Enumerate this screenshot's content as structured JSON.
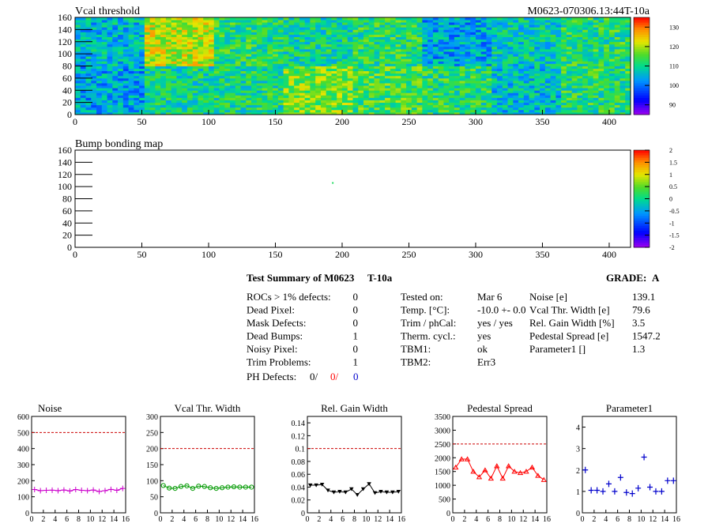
{
  "map1": {
    "title": "Vcal threshold",
    "id": "M0623-070306.13:44T-10a",
    "xticks": [
      "0",
      "50",
      "100",
      "150",
      "200",
      "250",
      "300",
      "350",
      "400"
    ],
    "yticks": [
      "0",
      "20",
      "40",
      "60",
      "80",
      "100",
      "120",
      "140",
      "160"
    ],
    "palette_labels": [
      "90",
      "100",
      "110",
      "120",
      "130"
    ]
  },
  "map2": {
    "title": "Bump bonding map",
    "xticks": [
      "0",
      "50",
      "100",
      "150",
      "200",
      "250",
      "300",
      "350",
      "400"
    ],
    "yticks": [
      "0",
      "20",
      "40",
      "60",
      "80",
      "100",
      "120",
      "140",
      "160"
    ],
    "palette_labels": [
      "-2",
      "-1.5",
      "-1",
      "-0.5",
      "0",
      "0.5",
      "1",
      "1.5",
      "2"
    ]
  },
  "summary": {
    "title": "Test Summary of M0623",
    "temp": "T-10a",
    "grade_label": "GRADE:",
    "grade": "A",
    "defects": [
      {
        "label": "ROCs > 1% defects:",
        "value": "0"
      },
      {
        "label": "Dead Pixel:",
        "value": "0"
      },
      {
        "label": "Mask Defects:",
        "value": "0"
      },
      {
        "label": "Dead Bumps:",
        "value": "1"
      },
      {
        "label": "Noisy Pixel:",
        "value": "0"
      },
      {
        "label": "Trim Problems:",
        "value": "1"
      }
    ],
    "ph_label": "PH Defects:",
    "ph_values": [
      "0/",
      "0/",
      "0"
    ],
    "ph_colors": [
      "#000000",
      "#ff0000",
      "#0000cc"
    ],
    "info": [
      {
        "label": "Tested on:",
        "value": "Mar 6"
      },
      {
        "label": "Temp. [°C]:",
        "value": "-10.0 +- 0.0"
      },
      {
        "label": "Trim / phCal:",
        "value": "yes / yes"
      },
      {
        "label": "Therm. cycl.:",
        "value": "yes"
      },
      {
        "label": "TBM1:",
        "value": "ok"
      },
      {
        "label": "TBM2:",
        "value": "Err3"
      }
    ],
    "params": [
      {
        "label": "Noise [e]",
        "value": "139.1"
      },
      {
        "label": "Vcal Thr. Width [e]",
        "value": "79.6"
      },
      {
        "label": "Rel. Gain Width [%]",
        "value": "3.5"
      },
      {
        "label": "Pedestal Spread [e]",
        "value": "1547.2"
      },
      {
        "label": "Parameter1 []",
        "value": "1.3"
      }
    ]
  },
  "chart_data": [
    {
      "type": "heatmap",
      "title": "Vcal threshold",
      "xlim": [
        0,
        416
      ],
      "ylim": [
        0,
        160
      ],
      "zlim": [
        85,
        135
      ],
      "roc_means_top": [
        106,
        121,
        112,
        110,
        112,
        104,
        108,
        112
      ],
      "roc_means_bottom": [
        104,
        110,
        111,
        117,
        114,
        112,
        106,
        112
      ]
    },
    {
      "type": "heatmap",
      "title": "Bump bonding map",
      "xlim": [
        0,
        416
      ],
      "ylim": [
        0,
        160
      ],
      "zlim": [
        -2,
        2
      ],
      "points": [
        {
          "x": 193,
          "y": 106,
          "z": 0.2
        }
      ]
    },
    {
      "type": "line",
      "title": "Noise",
      "color": "#cc00cc",
      "marker": "plus",
      "ylim": [
        0,
        600
      ],
      "yticks": [
        "0",
        "100",
        "200",
        "300",
        "400",
        "500",
        "600"
      ],
      "xticks": [
        "0",
        "2",
        "4",
        "6",
        "8",
        "10",
        "12",
        "14",
        "16"
      ],
      "threshold": 500,
      "x": [
        0,
        1,
        2,
        3,
        4,
        5,
        6,
        7,
        8,
        9,
        10,
        11,
        12,
        13,
        14,
        15
      ],
      "values": [
        145,
        138,
        140,
        141,
        138,
        142,
        136,
        145,
        140,
        138,
        142,
        133,
        138,
        146,
        140,
        152
      ]
    },
    {
      "type": "line",
      "title": "Vcal Thr. Width",
      "color": "#009900",
      "marker": "circle",
      "ylim": [
        0,
        300
      ],
      "yticks": [
        "0",
        "50",
        "100",
        "150",
        "200",
        "250",
        "300"
      ],
      "xticks": [
        "0",
        "2",
        "4",
        "6",
        "8",
        "10",
        "12",
        "14",
        "16"
      ],
      "threshold": 200,
      "x": [
        0,
        1,
        2,
        3,
        4,
        5,
        6,
        7,
        8,
        9,
        10,
        11,
        12,
        13,
        14,
        15
      ],
      "values": [
        85,
        77,
        76,
        82,
        84,
        76,
        83,
        82,
        78,
        76,
        78,
        80,
        81,
        80,
        80,
        80
      ]
    },
    {
      "type": "line",
      "title": "Rel. Gain Width",
      "color": "#000000",
      "marker": "triangle-down",
      "ylim": [
        0,
        0.15
      ],
      "yticks": [
        "0",
        "0.02",
        "0.04",
        "0.06",
        "0.08",
        "0.1",
        "0.12",
        "0.14"
      ],
      "xticks": [
        "0",
        "2",
        "4",
        "6",
        "8",
        "10",
        "12",
        "14",
        "16"
      ],
      "threshold": 0.1,
      "x": [
        0,
        1,
        2,
        3,
        4,
        5,
        6,
        7,
        8,
        9,
        10,
        11,
        12,
        13,
        14,
        15
      ],
      "values": [
        0.043,
        0.043,
        0.044,
        0.035,
        0.032,
        0.033,
        0.032,
        0.037,
        0.028,
        0.037,
        0.045,
        0.031,
        0.033,
        0.032,
        0.032,
        0.033
      ]
    },
    {
      "type": "line",
      "title": "Pedestal Spread",
      "color": "#ff0000",
      "marker": "triangle-up",
      "ylim": [
        0,
        3500
      ],
      "yticks": [
        "0",
        "500",
        "1000",
        "1500",
        "2000",
        "2500",
        "3000",
        "3500"
      ],
      "xticks": [
        "0",
        "2",
        "4",
        "6",
        "8",
        "10",
        "12",
        "14",
        "16"
      ],
      "threshold": 2500,
      "x": [
        0,
        1,
        2,
        3,
        4,
        5,
        6,
        7,
        8,
        9,
        10,
        11,
        12,
        13,
        14,
        15
      ],
      "values": [
        1650,
        1950,
        1950,
        1500,
        1300,
        1550,
        1250,
        1700,
        1250,
        1700,
        1500,
        1450,
        1500,
        1650,
        1350,
        1200
      ]
    },
    {
      "type": "scatter",
      "title": "Parameter1",
      "color": "#0000cc",
      "marker": "cross",
      "ylim": [
        0,
        4.5
      ],
      "yticks": [
        "0",
        "1",
        "2",
        "3",
        "4"
      ],
      "xticks": [
        "0",
        "2",
        "4",
        "6",
        "8",
        "10",
        "12",
        "14",
        "16"
      ],
      "x": [
        0,
        1,
        2,
        3,
        4,
        5,
        6,
        7,
        8,
        9,
        10,
        11,
        12,
        13,
        14,
        15
      ],
      "values": [
        2.0,
        1.05,
        1.05,
        1.0,
        1.35,
        1.0,
        1.65,
        0.95,
        0.9,
        1.15,
        2.6,
        1.2,
        1.0,
        1.0,
        1.5,
        1.5
      ]
    }
  ]
}
